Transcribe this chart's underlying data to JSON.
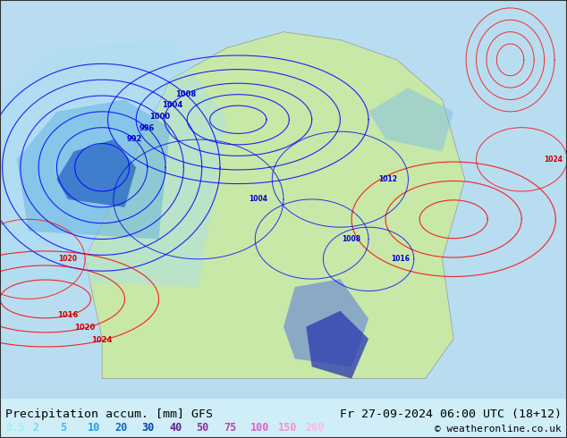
{
  "title_left": "Precipitation accum. [mm] GFS",
  "title_right": "Fr 27-09-2024 06:00 UTC (18+12)",
  "copyright": "© weatheronline.co.uk",
  "legend_values": [
    "0.5",
    "2",
    "5",
    "10",
    "20",
    "30",
    "40",
    "50",
    "75",
    "100",
    "150",
    "200"
  ],
  "legend_colors": [
    "#a0f0f8",
    "#78d8f0",
    "#50b8e8",
    "#2898e0",
    "#1068c8",
    "#0840a8",
    "#602090",
    "#9030a0",
    "#c040b0",
    "#e060c8",
    "#f090d8",
    "#ffb8e8"
  ],
  "bg_color": "#d0eef8",
  "fig_width": 6.34,
  "fig_height": 4.9,
  "dpi": 100,
  "map_bg": "#c8eef8",
  "land_color": "#c8e8b0",
  "ocean_color": "#a8d8f0",
  "bottom_bar_height": 0.09,
  "font_size_title": 9.5,
  "font_size_legend": 8.5,
  "font_size_copy": 8.0
}
